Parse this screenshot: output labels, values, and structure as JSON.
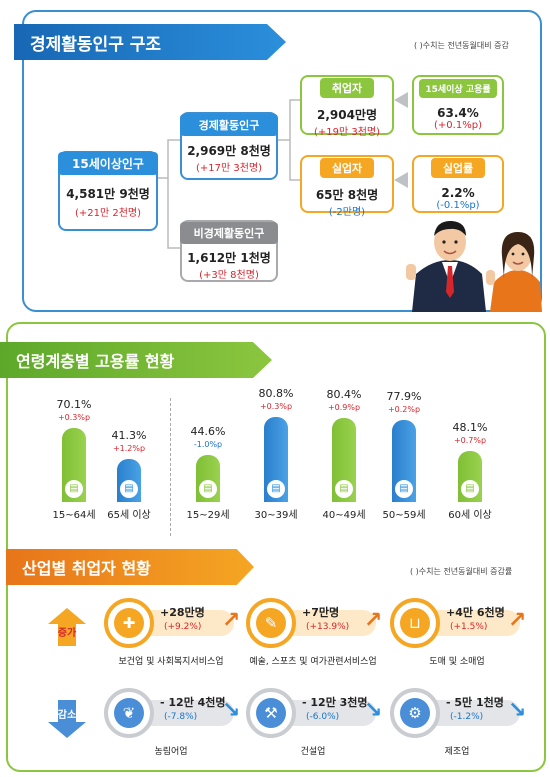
{
  "structure": {
    "title": "경제활동인구 구조",
    "note": "( )수치는 전년동월대비 증감",
    "pop15": {
      "header": "15세이상인구",
      "value": "4,581만 9천명",
      "change": "(+21만 2천명)"
    },
    "active": {
      "header": "경제활동인구",
      "value": "2,969만 8천명",
      "change": "(+17만 3천명)"
    },
    "inactive": {
      "header": "비경제활동인구",
      "value": "1,612만 1천명",
      "change": "(+3만 8천명)"
    },
    "employed": {
      "header": "취업자",
      "value": "2,904만명",
      "change": "(+19만 3천명)"
    },
    "unemployed": {
      "header": "실업자",
      "value": "65만 8천명",
      "change": "(-2만명)"
    },
    "emp_rate": {
      "header": "15세이상 고용률",
      "value": "63.4%",
      "change": "(+0.1%p)"
    },
    "unemp_rate": {
      "header": "실업률",
      "value": "2.2%",
      "change": "(-0.1%p)"
    }
  },
  "age": {
    "title": "연령계층별 고용률 현황",
    "chart_data": {
      "type": "bar",
      "categories": [
        "15~64세",
        "65세 이상",
        "15~29세",
        "30~39세",
        "40~49세",
        "50~59세",
        "60세 이상"
      ],
      "values": [
        70.1,
        41.3,
        44.6,
        80.8,
        80.4,
        77.9,
        48.1
      ],
      "value_labels": [
        "70.1%",
        "41.3%",
        "44.6%",
        "80.8%",
        "80.4%",
        "77.9%",
        "48.1%"
      ],
      "changes": [
        "+0.3%p",
        "+1.2%p",
        "-1.0%p",
        "+0.3%p",
        "+0.9%p",
        "+0.2%p",
        "+0.7%p"
      ],
      "colors": [
        "#8cc63f",
        "#2b8fdc",
        "#8cc63f",
        "#2b8fdc",
        "#8cc63f",
        "#2b8fdc",
        "#8cc63f"
      ]
    }
  },
  "industry": {
    "title": "산업별 취업자 현황",
    "note": "( )수치는 전년동월대비 증감률",
    "increase_label": "증가",
    "decrease_label": "감소",
    "increase": [
      {
        "name": "보건업 및 사회복지서비스업",
        "change": "+28만명",
        "rate": "(+9.2%)",
        "icon": "first-aid-kit-icon"
      },
      {
        "name": "예술, 스포츠 및 여가관련서비스업",
        "change": "+7만명",
        "rate": "(+13.9%)",
        "icon": "palette-icon"
      },
      {
        "name": "도매 및 소매업",
        "change": "+4만 6천명",
        "rate": "(+1.5%)",
        "icon": "shopping-basket-icon"
      }
    ],
    "decrease": [
      {
        "name": "농림어업",
        "change": "- 12만 4천명",
        "rate": "(-7.8%)",
        "icon": "wheat-icon"
      },
      {
        "name": "건설업",
        "change": "- 12만 3천명",
        "rate": "(-6.0%)",
        "icon": "excavator-icon"
      },
      {
        "name": "제조업",
        "change": "- 5만 1천명",
        "rate": "(-1.2%)",
        "icon": "gears-icon"
      }
    ]
  }
}
